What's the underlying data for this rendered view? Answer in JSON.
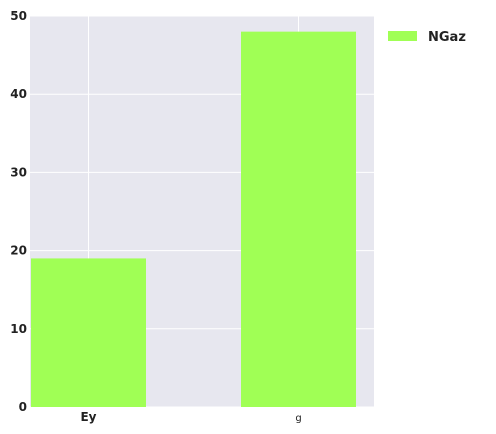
{
  "chart_data": {
    "type": "bar",
    "categories": [
      "Ey",
      "g"
    ],
    "series": [
      {
        "name": "NGaz",
        "values": [
          19,
          48
        ]
      }
    ],
    "ylim": [
      0,
      50
    ],
    "yticks": [
      0,
      10,
      20,
      30,
      40,
      50
    ],
    "grid": true,
    "legend": {
      "position": "outside-top-right",
      "entries": [
        "NGaz"
      ]
    },
    "colors": {
      "bar": "#a0ff55",
      "plot_background": "#e7e7ef",
      "grid": "#ffffff"
    }
  }
}
